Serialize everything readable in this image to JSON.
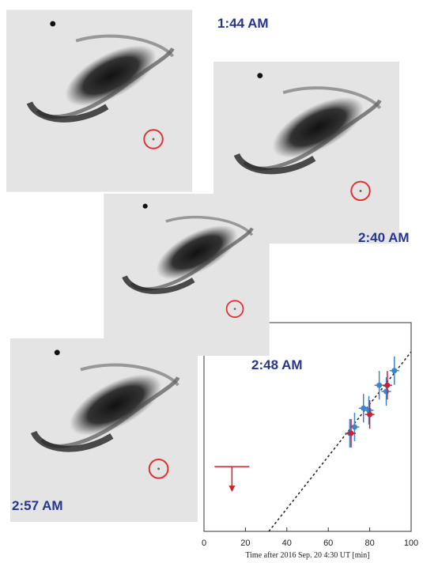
{
  "panels": [
    {
      "label": "1:44 AM"
    },
    {
      "label": "2:40 AM"
    },
    {
      "label": "2:48 AM"
    },
    {
      "label": "2:57 AM"
    }
  ],
  "chart_data": {
    "type": "scatter",
    "xlabel": "Time after 2016 Sep. 20 4:30 UT [min]",
    "xlim": [
      0,
      100
    ],
    "xticks": [
      0,
      20,
      40,
      60,
      80,
      100
    ],
    "ylim": [
      0,
      1
    ],
    "series": [
      {
        "color": "#3a86c8",
        "x": [
          70.4,
          72.7,
          77,
          79.6,
          84.6,
          88,
          91.9
        ],
        "values": [
          0.47,
          0.5,
          0.59,
          0.58,
          0.7,
          0.67,
          0.77
        ]
      },
      {
        "color": "#c8203c",
        "x": [
          71,
          80,
          88.5
        ],
        "values": [
          0.47,
          0.56,
          0.7
        ]
      },
      {
        "color": "#d0202a",
        "x": [
          13.5
        ],
        "values": [
          0.31
        ]
      }
    ]
  }
}
